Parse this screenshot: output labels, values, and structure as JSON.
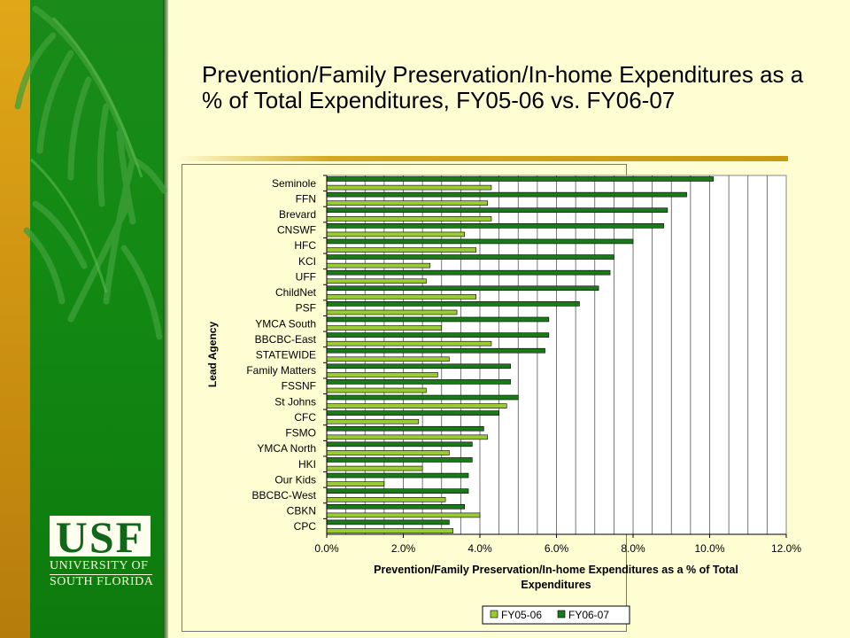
{
  "slide": {
    "title": "Prevention/Family Preservation/In-home Expenditures as a % of Total Expenditures, FY05-06 vs. FY06-07"
  },
  "logo": {
    "usf": "USF",
    "line1": "UNIVERSITY OF",
    "line2": "SOUTH FLORIDA"
  },
  "colors": {
    "fy0506": "#99cc33",
    "fy0607": "#1a7a1a",
    "sidebar_green": "#138a13",
    "sidebar_gold": "#d9a016",
    "background": "#fffdd2"
  },
  "chart_data": {
    "type": "bar",
    "orientation": "horizontal",
    "xlabel": "Prevention/Family Preservation/In-home Expenditures as a % of Total Expenditures",
    "ylabel": "Lead Agency",
    "xlim": [
      0,
      12
    ],
    "x_ticks": [
      "0.0%",
      "2.0%",
      "4.0%",
      "6.0%",
      "8.0%",
      "10.0%",
      "12.0%"
    ],
    "grid": true,
    "legend_position": "bottom",
    "categories": [
      "Seminole",
      "FFN",
      "Brevard",
      "CNSWF",
      "HFC",
      "KCI",
      "UFF",
      "ChildNet",
      "PSF",
      "YMCA South",
      "BBCBC-East",
      "STATEWIDE",
      "Family Matters",
      "FSSNF",
      "St Johns",
      "CFC",
      "FSMO",
      "YMCA North",
      "HKI",
      "Our Kids",
      "BBCBC-West",
      "CBKN",
      "CPC"
    ],
    "series": [
      {
        "name": "FY05-06",
        "values": [
          4.3,
          4.2,
          4.3,
          3.6,
          3.9,
          2.7,
          2.6,
          3.9,
          3.4,
          3.0,
          4.3,
          3.2,
          2.9,
          2.6,
          4.7,
          2.4,
          4.2,
          3.2,
          2.5,
          1.5,
          3.1,
          4.0,
          3.3
        ]
      },
      {
        "name": "FY06-07",
        "values": [
          10.1,
          9.4,
          8.9,
          8.8,
          8.0,
          7.5,
          7.4,
          7.1,
          6.6,
          5.8,
          5.8,
          5.7,
          4.8,
          4.8,
          5.0,
          4.5,
          4.1,
          3.8,
          3.8,
          3.7,
          3.7,
          3.6,
          3.2
        ]
      }
    ]
  }
}
